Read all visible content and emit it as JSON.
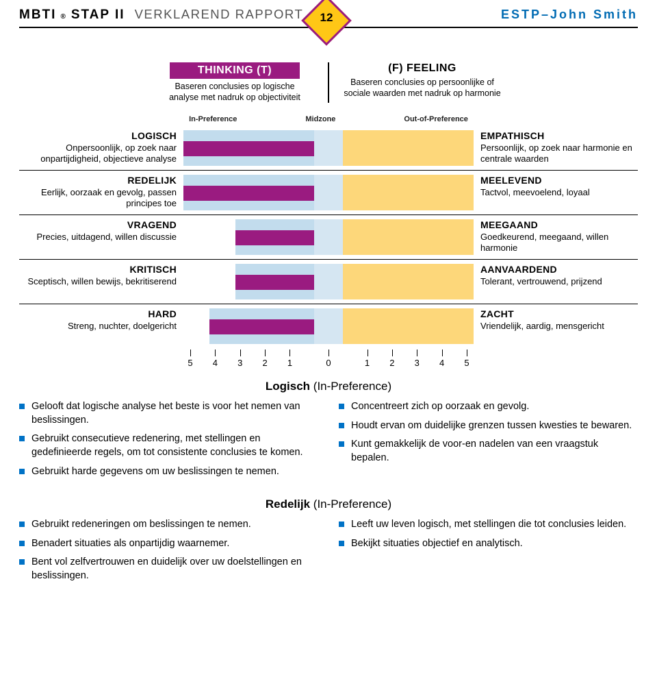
{
  "header": {
    "brand": "MBTI",
    "reg": "®",
    "step": "STAP II",
    "subtitle": "VERKLAREND RAPPORT",
    "page": "12",
    "person": "ESTP–John Smith"
  },
  "traits": {
    "left_title": "THINKING (T)",
    "left_desc1": "Baseren conclusies op logische",
    "left_desc2": "analyse met nadruk op objectiviteit",
    "right_title": "(F) FEELING",
    "right_desc1": "Baseren conclusies op persoonlijke of",
    "right_desc2": "sociale waarden met nadruk op harmonie"
  },
  "zone_labels": {
    "inpref": "In-Preference",
    "mid": "Midzone",
    "outpref": "Out-of-Preference"
  },
  "colors": {
    "accent_purple": "#9a1b80",
    "accent_yellow": "#ffc716",
    "bar": "#9a1b80",
    "inpref_bg": "#c2dced",
    "mid_bg": "#d5e6f2",
    "outpref_bg": "#fdd77a",
    "bullet": "#0072c6",
    "header_blue": "#006bb3"
  },
  "axis": {
    "ticks": [
      5,
      4,
      3,
      2,
      1,
      0,
      1,
      2,
      3,
      4,
      5
    ]
  },
  "facets": [
    {
      "left_title": "LOGISCH",
      "left_desc": "Onpersoonlijk, op zoek naar onpartijdigheid, objectieve analyse",
      "right_title": "EMPATHISCH",
      "right_desc": "Persoonlijk, op zoek naar harmonie en centrale waarden",
      "bar_side": "left",
      "bar_value": 5,
      "inpref_visible_cells": 5
    },
    {
      "left_title": "REDELIJK",
      "left_desc": "Eerlijk, oorzaak en gevolg, passen principes toe",
      "right_title": "MEELEVEND",
      "right_desc": "Tactvol, meevoelend, loyaal",
      "bar_side": "left",
      "bar_value": 5,
      "inpref_visible_cells": 5
    },
    {
      "left_title": "VRAGEND",
      "left_desc": "Precies, uitdagend, willen discussie",
      "right_title": "MEEGAAND",
      "right_desc": "Goedkeurend, meegaand, willen harmonie",
      "bar_side": "left",
      "bar_value": 3,
      "inpref_visible_cells": 3
    },
    {
      "left_title": "KRITISCH",
      "left_desc": "Sceptisch, willen bewijs, bekritiserend",
      "right_title": "AANVAARDEND",
      "right_desc": "Tolerant, vertrouwend, prijzend",
      "bar_side": "left",
      "bar_value": 3,
      "inpref_visible_cells": 3
    },
    {
      "left_title": "HARD",
      "left_desc": "Streng, nuchter, doelgericht",
      "right_title": "ZACHT",
      "right_desc": "Vriendelijk, aardig, mensgericht",
      "bar_side": "left",
      "bar_value": 4,
      "inpref_visible_cells": 4
    }
  ],
  "sections": [
    {
      "title_bold": "Logisch",
      "title_paren": "(In-Preference)",
      "left_bullets": [
        "Gelooft dat logische analyse het beste is voor het nemen van beslissingen.",
        "Gebruikt consecutieve redenering, met stellingen en gedefinieerde regels, om tot consistente conclusies te komen.",
        "Gebruikt harde gegevens om uw beslissingen te nemen."
      ],
      "right_bullets": [
        "Concentreert zich op oorzaak en gevolg.",
        "Houdt ervan om duidelijke grenzen tussen kwesties te bewaren.",
        "Kunt gemakkelijk de voor-en nadelen van een vraagstuk bepalen."
      ]
    },
    {
      "title_bold": "Redelijk",
      "title_paren": "(In-Preference)",
      "left_bullets": [
        "Gebruikt redeneringen om beslissingen te nemen.",
        "Benadert situaties als onpartijdig waarnemer.",
        "Bent vol zelfvertrouwen en duidelijk over uw doelstellingen en beslissingen."
      ],
      "right_bullets": [
        "Leeft uw leven logisch, met stellingen die tot conclusies leiden.",
        "Bekijkt situaties objectief en analytisch."
      ]
    }
  ]
}
